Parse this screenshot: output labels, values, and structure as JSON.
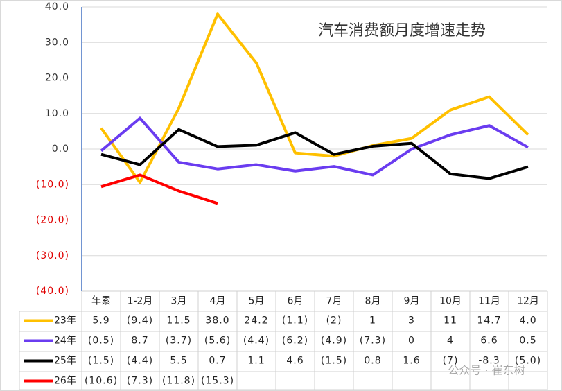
{
  "chart_data": {
    "type": "line",
    "title": "汽车消费额月度增速走势",
    "watermark": "公众号 · 崔东树",
    "categories": [
      "年累",
      "1-2月",
      "3月",
      "4月",
      "5月",
      "6月",
      "7月",
      "8月",
      "9月",
      "10月",
      "11月",
      "12月"
    ],
    "ylim": [
      -40,
      40
    ],
    "yticks": [
      {
        "value": 40,
        "label": "40.0"
      },
      {
        "value": 30,
        "label": "30.0"
      },
      {
        "value": 20,
        "label": "20.0"
      },
      {
        "value": 10,
        "label": "10.0"
      },
      {
        "value": 0,
        "label": "0.0"
      },
      {
        "value": -10,
        "label": "(10.0)"
      },
      {
        "value": -20,
        "label": "(20.0)"
      },
      {
        "value": -30,
        "label": "(30.0)"
      },
      {
        "value": -40,
        "label": "(40.0)"
      }
    ],
    "grid": true,
    "series": [
      {
        "name": "23年",
        "color": "#ffc000",
        "values": [
          5.9,
          -9.4,
          11.5,
          38.0,
          24.2,
          -1.1,
          -2,
          1,
          3,
          11,
          14.7,
          4.0
        ],
        "value_labels": [
          "5.9",
          "(9.4)",
          "11.5",
          "38.0",
          "24.2",
          "(1.1)",
          "(2)",
          "1",
          "3",
          "11",
          "14.7",
          "4.0"
        ]
      },
      {
        "name": "24年",
        "color": "#6a3cf0",
        "values": [
          -0.5,
          8.7,
          -3.7,
          -5.6,
          -4.4,
          -6.2,
          -4.9,
          -7.3,
          0,
          4,
          6.6,
          0.5
        ],
        "value_labels": [
          "(0.5)",
          "8.7",
          "(3.7)",
          "(5.6)",
          "(4.4)",
          "(6.2)",
          "(4.9)",
          "(7.3)",
          "0",
          "4",
          "6.6",
          "0.5"
        ]
      },
      {
        "name": "25年",
        "color": "#000000",
        "values": [
          -1.5,
          -4.4,
          5.5,
          0.7,
          1.1,
          4.6,
          -1.5,
          0.8,
          1.6,
          -7,
          -8.3,
          -5.0
        ],
        "value_labels": [
          "(1.5)",
          "(4.4)",
          "5.5",
          "0.7",
          "1.1",
          "4.6",
          "(1.5)",
          "0.8",
          "1.6",
          "(7)",
          "-8.3",
          "(5.0)"
        ]
      },
      {
        "name": "26年",
        "color": "#ff0000",
        "values": [
          -10.6,
          -7.3,
          -11.8,
          -15.3,
          null,
          null,
          null,
          null,
          null,
          null,
          null,
          null
        ],
        "value_labels": [
          "(10.6)",
          "(7.3)",
          "(11.8)",
          "(15.3)",
          null,
          null,
          null,
          null,
          null,
          null,
          null,
          null
        ]
      }
    ]
  }
}
